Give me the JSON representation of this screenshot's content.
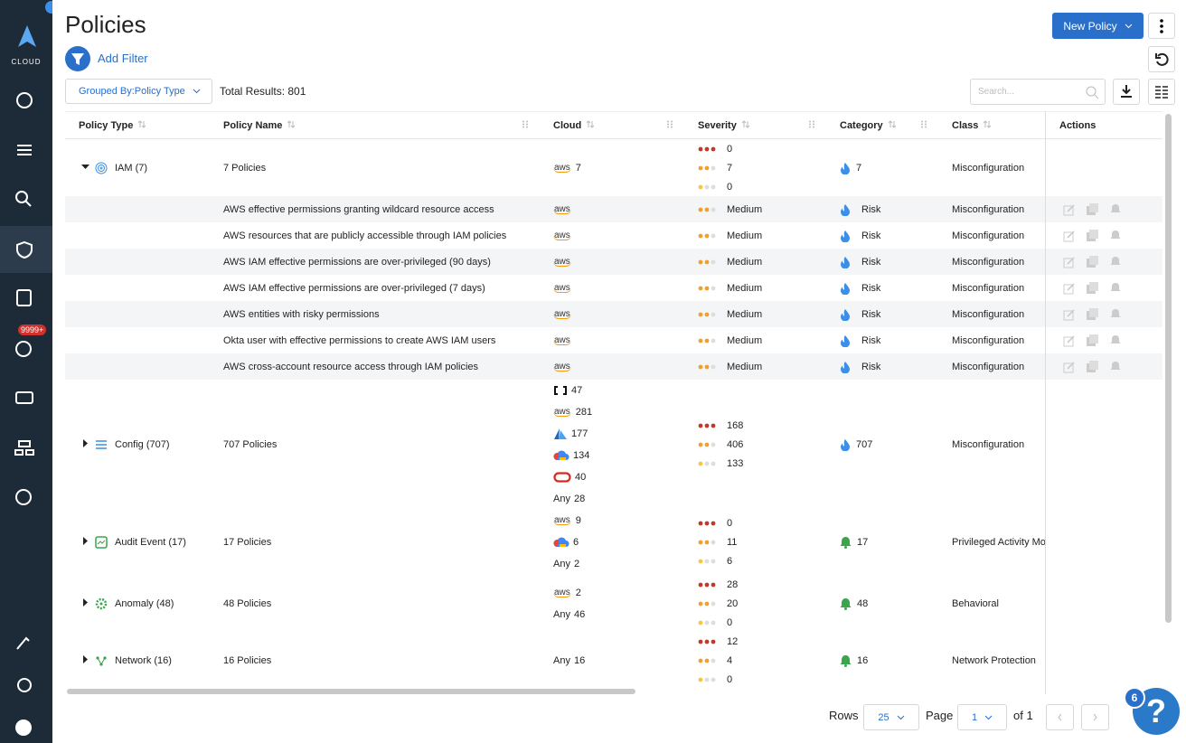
{
  "sidebar": {
    "logo": "CLOUD",
    "alerts_badge": "9999+"
  },
  "header": {
    "title": "Policies",
    "add_filter": "Add Filter",
    "new_policy": "New Policy"
  },
  "toolbar": {
    "group_by": "Grouped By:Policy Type",
    "total_results": "Total Results: 801",
    "search_placeholder": "Search..."
  },
  "table": {
    "columns": [
      "Policy Type",
      "Policy Name",
      "Cloud",
      "Severity",
      "Category",
      "Class",
      "Actions"
    ],
    "groups": [
      {
        "policy_type": "IAM (7)",
        "policy_name": "7 Policies",
        "cloud": [
          {
            "label": "aws",
            "count": 7
          }
        ],
        "severity": [
          0,
          7,
          0
        ],
        "category": 7,
        "class": "Misconfiguration",
        "rows": [
          {
            "policy_name": "AWS effective permissions granting wildcard resource access",
            "cloud": "aws",
            "severity": "Medium",
            "category": "Risk",
            "class": "Misconfiguration"
          },
          {
            "policy_name": "AWS resources that are publicly accessible through IAM policies",
            "cloud": "aws",
            "severity": "Medium",
            "category": "Risk",
            "class": "Misconfiguration"
          },
          {
            "policy_name": "AWS IAM effective permissions are over-privileged (90 days)",
            "cloud": "aws",
            "severity": "Medium",
            "category": "Risk",
            "class": "Misconfiguration"
          },
          {
            "policy_name": "AWS IAM effective permissions are over-privileged (7 days)",
            "cloud": "aws",
            "severity": "Medium",
            "category": "Risk",
            "class": "Misconfiguration"
          },
          {
            "policy_name": "AWS entities with risky permissions",
            "cloud": "aws",
            "severity": "Medium",
            "category": "Risk",
            "class": "Misconfiguration"
          },
          {
            "policy_name": "Okta user with effective permissions to create AWS IAM users",
            "cloud": "aws",
            "severity": "Medium",
            "category": "Risk",
            "class": "Misconfiguration"
          },
          {
            "policy_name": "AWS cross-account resource access through IAM policies",
            "cloud": "aws",
            "severity": "Medium",
            "category": "Risk",
            "class": "Misconfiguration"
          }
        ]
      },
      {
        "policy_type": "Config (707)",
        "policy_name": "707 Policies",
        "cloud": [
          {
            "count": 47
          },
          {
            "label": "aws",
            "count": 281
          },
          {
            "count": 177
          },
          {
            "count": 134
          },
          {
            "count": 40
          },
          {
            "label": "Any",
            "count": 28
          }
        ],
        "severity": [
          168,
          406,
          133
        ],
        "category": 707,
        "class": "Misconfiguration"
      },
      {
        "policy_type": "Audit Event (17)",
        "policy_name": "17 Policies",
        "cloud": [
          {
            "label": "aws",
            "count": 9
          },
          {
            "count": 6
          },
          {
            "label": "Any",
            "count": 2
          }
        ],
        "severity": [
          0,
          11,
          6
        ],
        "category": 17,
        "class": "Privileged Activity Mo"
      },
      {
        "policy_type": "Anomaly (48)",
        "policy_name": "48 Policies",
        "cloud": [
          {
            "label": "aws",
            "count": 2
          },
          {
            "label": "Any",
            "count": 46
          }
        ],
        "severity": [
          28,
          20,
          0
        ],
        "category": 48,
        "class": "Behavioral"
      },
      {
        "policy_type": "Network (16)",
        "policy_name": "16 Policies",
        "cloud": [
          {
            "label": "Any",
            "count": 16
          }
        ],
        "severity": [
          12,
          4,
          0
        ],
        "category": 16,
        "class": "Network Protection"
      }
    ]
  },
  "footer": {
    "rows_label": "Rows",
    "rows_value": "25",
    "page_label": "Page",
    "page_value": "1",
    "page_total": "of 1"
  },
  "help": {
    "badge": "6",
    "icon": "?"
  }
}
